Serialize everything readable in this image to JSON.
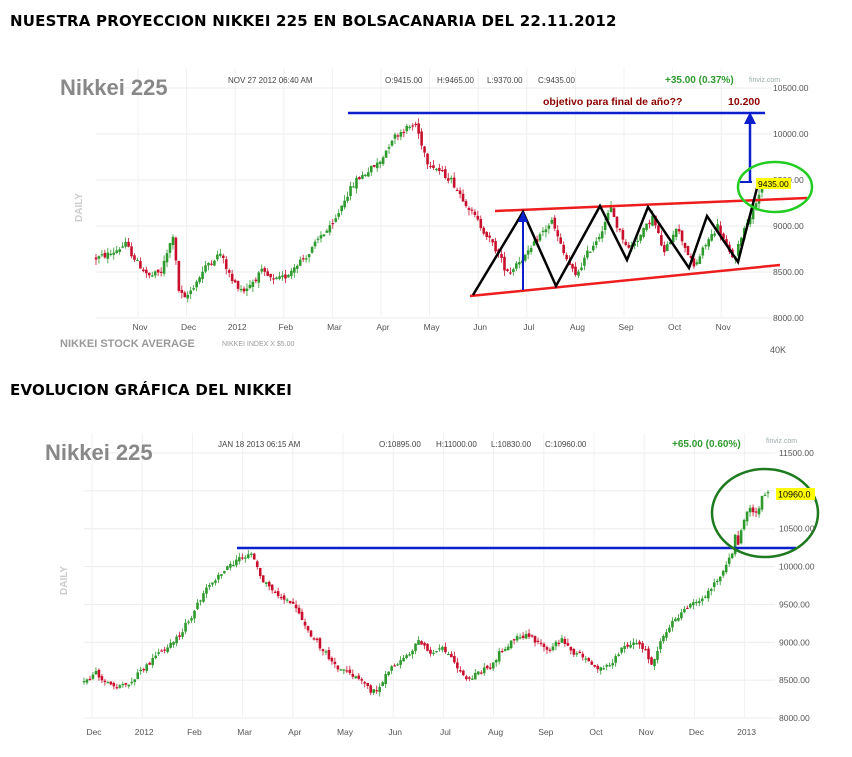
{
  "page": {
    "heading_top": "NUESTRA PROYECCION  NIKKEI 225 EN BOLSACANARIA  DEL 22.11.2012",
    "heading_mid": "EVOLUCION GRÁFICA  DEL NIKKEI"
  },
  "colors": {
    "up": "#2e9a2e",
    "down": "#c8102e",
    "blue": "#0b1fcc",
    "red": "#ee1c1c",
    "greenCircle": "#22cc22",
    "darkGreenCircle": "#1e7a1e",
    "dark": "#8b0000"
  },
  "chart_data": [
    {
      "type": "candlestick",
      "title": "Nikkei 225",
      "timestamp": "NOV 27 2012 06:40 AM",
      "ohlc_label": {
        "o": "O:9415.00",
        "h": "H:9465.00",
        "l": "L:9370.00",
        "c": "C:9435.00"
      },
      "change": "+35.00 (0.37%)",
      "brand": "finviz.com",
      "ylabel": "DAILY",
      "footer_left": "NIKKEI STOCK AVERAGE",
      "footer_small": "NIKKEI INDEX X $5.00",
      "ylim": [
        8000,
        10500
      ],
      "yticks": [
        8000,
        8500,
        9000,
        9500,
        10000,
        10500
      ],
      "ytick_labels": [
        "8000.00",
        "8500.00",
        "9000.00",
        "9500.00",
        "10000.00",
        "10500.00"
      ],
      "volume_label": "40K",
      "xtick_labels": [
        "Nov",
        "Dec",
        "2012",
        "Feb",
        "Mar",
        "Apr",
        "May",
        "Jun",
        "Jul",
        "Aug",
        "Sep",
        "Oct",
        "Nov"
      ],
      "last_price": "9435.00",
      "annotation_text": "objetivo para final de año??",
      "annotation_value": "10.200",
      "anchors": [
        [
          0,
          8650
        ],
        [
          5,
          8700
        ],
        [
          10,
          8800
        ],
        [
          14,
          8600
        ],
        [
          18,
          8450
        ],
        [
          22,
          8500
        ],
        [
          26,
          8900
        ],
        [
          28,
          8300
        ],
        [
          30,
          8200
        ],
        [
          34,
          8400
        ],
        [
          38,
          8600
        ],
        [
          42,
          8700
        ],
        [
          46,
          8400
        ],
        [
          50,
          8300
        ],
        [
          56,
          8500
        ],
        [
          60,
          8400
        ],
        [
          64,
          8450
        ],
        [
          68,
          8600
        ],
        [
          72,
          8700
        ],
        [
          76,
          8900
        ],
        [
          80,
          9000
        ],
        [
          84,
          9300
        ],
        [
          88,
          9500
        ],
        [
          92,
          9600
        ],
        [
          96,
          9700
        ],
        [
          100,
          9950
        ],
        [
          104,
          10050
        ],
        [
          108,
          10100
        ],
        [
          110,
          9900
        ],
        [
          112,
          9700
        ],
        [
          116,
          9600
        ],
        [
          120,
          9500
        ],
        [
          124,
          9300
        ],
        [
          128,
          9100
        ],
        [
          132,
          8900
        ],
        [
          136,
          8700
        ],
        [
          138,
          8550
        ],
        [
          140,
          8500
        ],
        [
          142,
          8600
        ],
        [
          146,
          8700
        ],
        [
          150,
          8900
        ],
        [
          154,
          9050
        ],
        [
          158,
          8700
        ],
        [
          162,
          8450
        ],
        [
          166,
          8700
        ],
        [
          170,
          8900
        ],
        [
          174,
          9200
        ],
        [
          176,
          9000
        ],
        [
          180,
          8750
        ],
        [
          184,
          8900
        ],
        [
          188,
          9100
        ],
        [
          192,
          8700
        ],
        [
          196,
          9000
        ],
        [
          198,
          8850
        ],
        [
          202,
          8550
        ],
        [
          206,
          8800
        ],
        [
          210,
          9000
        ],
        [
          214,
          8700
        ],
        [
          216,
          8650
        ],
        [
          218,
          8900
        ],
        [
          222,
          9200
        ],
        [
          225,
          9435
        ]
      ]
    },
    {
      "type": "candlestick",
      "title": "Nikkei 225",
      "timestamp": "JAN 18 2013 06:15 AM",
      "ohlc_label": {
        "o": "O:10895.00",
        "h": "H:11000.00",
        "l": "L:10830.00",
        "c": "C:10960.00"
      },
      "change": "+65.00 (0.60%)",
      "brand": "finviz.com",
      "ylabel": "DAILY",
      "ylim": [
        8000,
        11500
      ],
      "yticks": [
        8000,
        8500,
        9000,
        9500,
        10000,
        10500,
        11000,
        11500
      ],
      "ytick_labels": [
        "8000.00",
        "8500.00",
        "9000.00",
        "9500.00",
        "10000.00",
        "10500.00",
        "",
        "11500.00"
      ],
      "xtick_labels": [
        "Dec",
        "2012",
        "Feb",
        "Mar",
        "Apr",
        "May",
        "Jun",
        "Jul",
        "Aug",
        "Sep",
        "Oct",
        "Nov",
        "Dec",
        "2013"
      ],
      "last_price": "10960.0",
      "anchors": [
        [
          0,
          8500
        ],
        [
          4,
          8600
        ],
        [
          8,
          8450
        ],
        [
          12,
          8400
        ],
        [
          16,
          8500
        ],
        [
          20,
          8650
        ],
        [
          24,
          8800
        ],
        [
          28,
          8950
        ],
        [
          32,
          9100
        ],
        [
          36,
          9350
        ],
        [
          40,
          9650
        ],
        [
          44,
          9850
        ],
        [
          48,
          10000
        ],
        [
          52,
          10100
        ],
        [
          56,
          10150
        ],
        [
          58,
          10000
        ],
        [
          60,
          9800
        ],
        [
          64,
          9650
        ],
        [
          68,
          9550
        ],
        [
          72,
          9400
        ],
        [
          76,
          9100
        ],
        [
          80,
          8900
        ],
        [
          84,
          8700
        ],
        [
          88,
          8600
        ],
        [
          92,
          8500
        ],
        [
          96,
          8350
        ],
        [
          98,
          8350
        ],
        [
          100,
          8500
        ],
        [
          104,
          8700
        ],
        [
          108,
          8800
        ],
        [
          112,
          9000
        ],
        [
          116,
          8850
        ],
        [
          120,
          8950
        ],
        [
          124,
          8750
        ],
        [
          128,
          8500
        ],
        [
          132,
          8600
        ],
        [
          136,
          8700
        ],
        [
          140,
          8900
        ],
        [
          144,
          9050
        ],
        [
          148,
          9100
        ],
        [
          152,
          9000
        ],
        [
          156,
          8900
        ],
        [
          160,
          9050
        ],
        [
          164,
          8850
        ],
        [
          168,
          8800
        ],
        [
          172,
          8650
        ],
        [
          176,
          8700
        ],
        [
          180,
          8900
        ],
        [
          184,
          9000
        ],
        [
          188,
          8900
        ],
        [
          190,
          8700
        ],
        [
          194,
          9100
        ],
        [
          198,
          9300
        ],
        [
          202,
          9450
        ],
        [
          206,
          9550
        ],
        [
          210,
          9700
        ],
        [
          214,
          9950
        ],
        [
          217,
          10200
        ],
        [
          218,
          10400
        ],
        [
          219,
          10300
        ],
        [
          221,
          10600
        ],
        [
          223,
          10800
        ],
        [
          225,
          10700
        ],
        [
          227,
          10900
        ],
        [
          229,
          10960
        ]
      ]
    }
  ]
}
